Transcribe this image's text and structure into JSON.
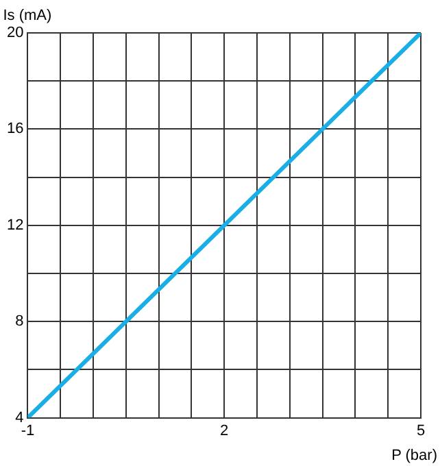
{
  "chart_data": {
    "type": "line",
    "xlabel": "P (bar)",
    "ylabel": "Is (mA)",
    "x": [
      -1,
      5
    ],
    "series": [
      {
        "color": "#1aaee6",
        "values": [
          4,
          20
        ]
      }
    ],
    "xlim": [
      -1,
      5
    ],
    "ylim": [
      4,
      20
    ],
    "xticks": [
      -1,
      {
        "value": -0.5,
        "label": null
      },
      {
        "value": 0,
        "label": null
      },
      {
        "value": 0.5,
        "label": null
      },
      {
        "value": 1,
        "label": null
      },
      {
        "value": 1.5,
        "label": null
      },
      2,
      {
        "value": 2.5,
        "label": null
      },
      {
        "value": 3,
        "label": null
      },
      {
        "value": 3.5,
        "label": null
      },
      {
        "value": 4,
        "label": null
      },
      {
        "value": 4.5,
        "label": null
      },
      5
    ],
    "yticks": [
      4,
      {
        "value": 6,
        "label": null
      },
      8,
      {
        "value": 10,
        "label": null
      },
      12,
      {
        "value": 14,
        "label": null
      },
      16,
      {
        "value": 18,
        "label": null
      },
      20
    ],
    "grid": true,
    "legend": false,
    "marker": "none",
    "line_style": "solid"
  }
}
